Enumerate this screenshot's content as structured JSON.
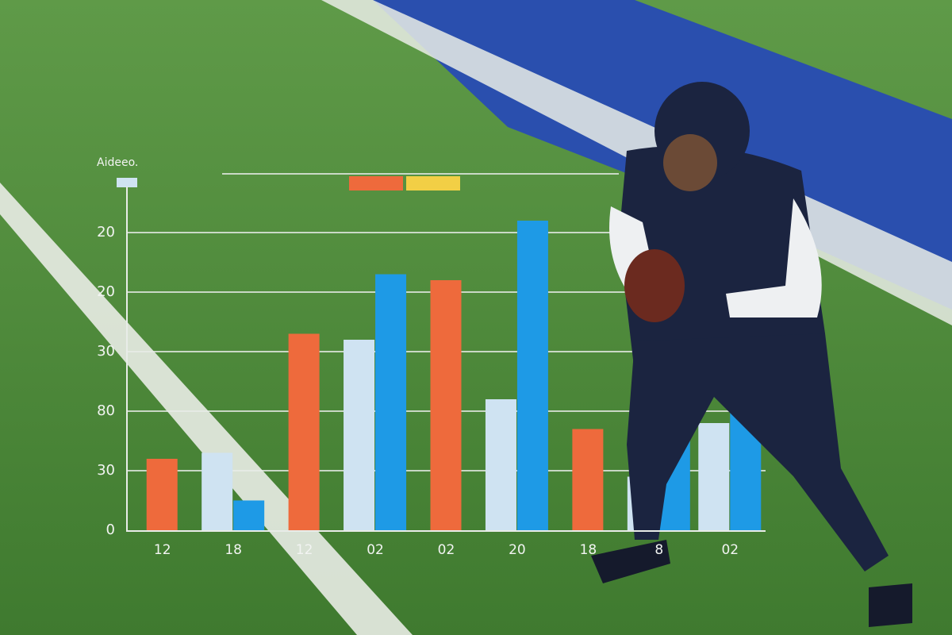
{
  "chart_data": {
    "type": "bar",
    "title": "Aideeo.",
    "categories": [
      "12",
      "18",
      "12",
      "02",
      "02",
      "20",
      "18",
      "8",
      "02"
    ],
    "series": [
      {
        "color": "#ee6a3c",
        "values": [
          1.2,
          null,
          3.3,
          null,
          4.2,
          null,
          1.7,
          null,
          null
        ]
      },
      {
        "color": "#cfe3f2",
        "values": [
          null,
          1.3,
          null,
          3.2,
          null,
          2.2,
          null,
          0.9,
          1.8
        ]
      },
      {
        "color": "#1e9ae6",
        "values": [
          null,
          0.5,
          null,
          4.3,
          null,
          5.2,
          null,
          2.0,
          2.6
        ]
      }
    ],
    "ylim": [
      0,
      6
    ],
    "yticks": [
      {
        "value": 0,
        "label": "0"
      },
      {
        "value": 1,
        "label": "30"
      },
      {
        "value": 2,
        "label": "80"
      },
      {
        "value": 3,
        "label": "30"
      },
      {
        "value": 4,
        "label": "20"
      },
      {
        "value": 5,
        "label": "20"
      }
    ],
    "grid": true,
    "legend_swatches": [
      "#ee6a3c",
      "#f2cf45"
    ]
  }
}
